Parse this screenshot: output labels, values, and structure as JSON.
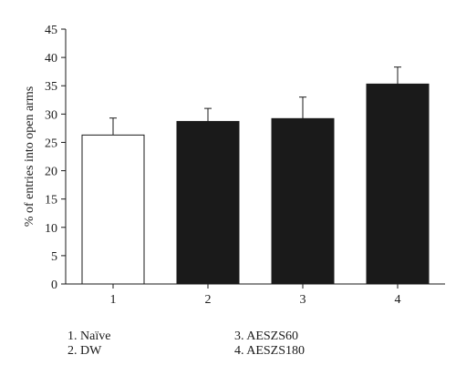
{
  "chart_data": {
    "type": "bar",
    "title": "",
    "xlabel": "",
    "ylabel": "% of entries into open arms",
    "ylim": [
      0,
      45
    ],
    "yticks": [
      0,
      5,
      10,
      15,
      20,
      25,
      30,
      35,
      40,
      45
    ],
    "categories": [
      "1",
      "2",
      "3",
      "4"
    ],
    "values": [
      26.3,
      28.7,
      29.2,
      35.3
    ],
    "errors": [
      3.0,
      2.3,
      3.8,
      3.0
    ],
    "bar_colors": [
      "#ffffff",
      "#1a1a1a",
      "#1a1a1a",
      "#1a1a1a"
    ],
    "grid": false,
    "legend_position": "bottom"
  },
  "legend": {
    "item1": "1. Naïve",
    "item2": "2. DW",
    "item3": "3. AESZS60",
    "item4": "4. AESZS180"
  }
}
